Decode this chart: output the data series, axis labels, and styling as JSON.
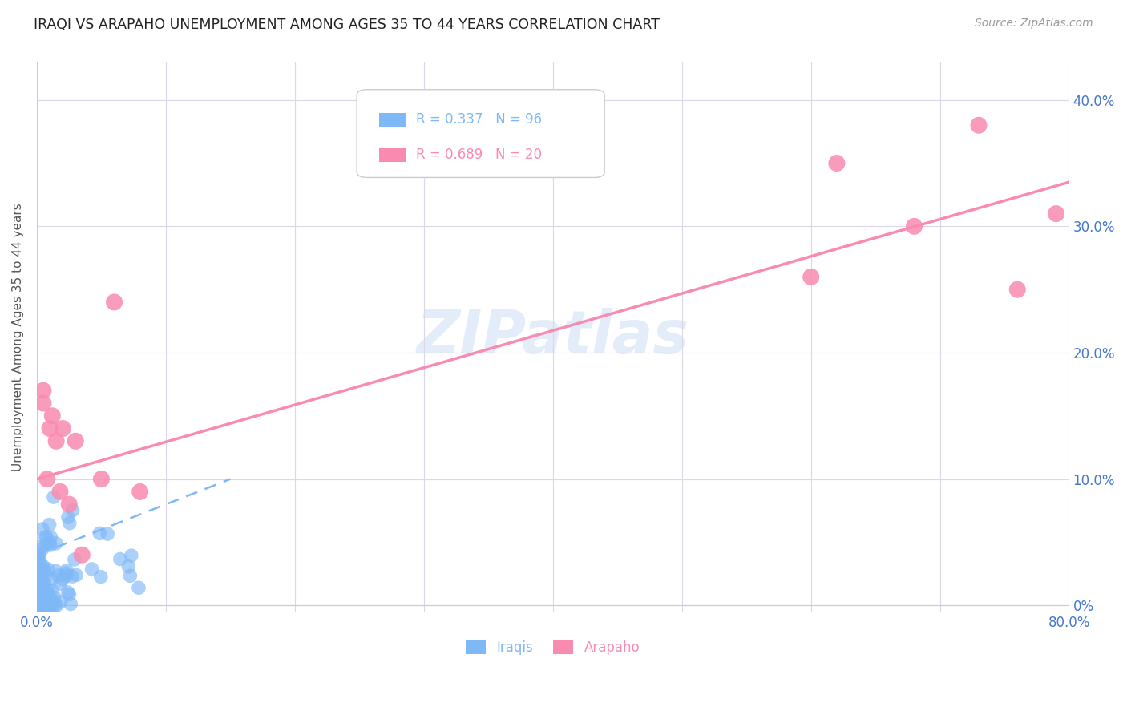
{
  "title": "IRAQI VS ARAPAHO UNEMPLOYMENT AMONG AGES 35 TO 44 YEARS CORRELATION CHART",
  "source": "Source: ZipAtlas.com",
  "ylabel": "Unemployment Among Ages 35 to 44 years",
  "xlim": [
    0.0,
    0.8
  ],
  "ylim": [
    -0.005,
    0.43
  ],
  "xticks": [
    0.0,
    0.1,
    0.2,
    0.3,
    0.4,
    0.5,
    0.6,
    0.7,
    0.8
  ],
  "xtick_labels_show": [
    "0.0%",
    "",
    "",
    "",
    "",
    "",
    "",
    "",
    "80.0%"
  ],
  "yticks": [
    0.0,
    0.1,
    0.2,
    0.3,
    0.4
  ],
  "ytick_labels_right": [
    "0%",
    "10.0%",
    "20.0%",
    "30.0%",
    "40.0%"
  ],
  "ytick_labels_left": [
    "",
    "",
    "",
    "",
    ""
  ],
  "iraqis_color": "#7eb8f7",
  "arapaho_color": "#f98bb0",
  "iraqis_R": 0.337,
  "iraqis_N": 96,
  "arapaho_R": 0.689,
  "arapaho_N": 20,
  "watermark": "ZIPatlas",
  "background_color": "#ffffff",
  "grid_color": "#ddd8e8",
  "title_color": "#222222",
  "axis_label_color": "#555555",
  "tick_color_blue": "#4477cc",
  "iraqi_line": {
    "x0": 0.0,
    "x1": 0.15,
    "y0": 0.04,
    "y1": 0.1
  },
  "arapaho_line": {
    "x0": 0.0,
    "x1": 0.8,
    "y0": 0.1,
    "y1": 0.335
  },
  "arapaho_x": [
    0.005,
    0.005,
    0.008,
    0.01,
    0.012,
    0.015,
    0.018,
    0.02,
    0.025,
    0.03,
    0.035,
    0.05,
    0.06,
    0.08,
    0.6,
    0.62,
    0.68,
    0.73,
    0.76,
    0.79
  ],
  "arapaho_y": [
    0.17,
    0.16,
    0.1,
    0.14,
    0.15,
    0.13,
    0.09,
    0.14,
    0.08,
    0.13,
    0.04,
    0.1,
    0.24,
    0.09,
    0.26,
    0.35,
    0.3,
    0.38,
    0.25,
    0.31
  ]
}
